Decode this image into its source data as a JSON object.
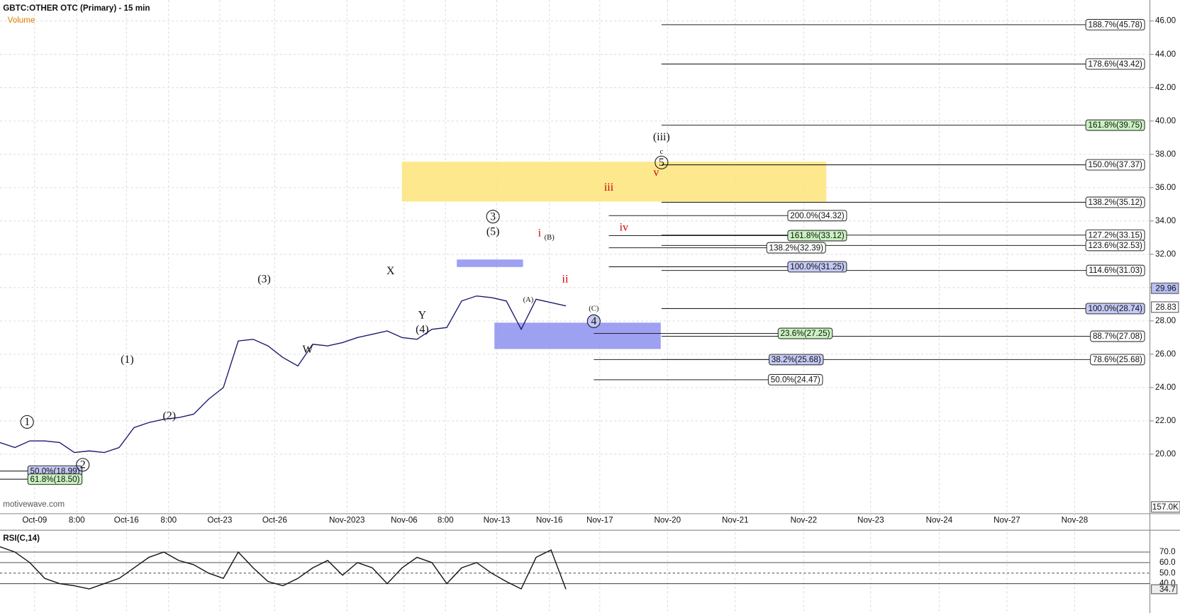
{
  "chart_data": [
    {
      "type": "line",
      "title": "GBTC:OTHER OTC (Primary) - 15 min",
      "indicator": "Volume",
      "watermark": "motivewave.com",
      "color": "#1a1a6e",
      "values": [
        20.7,
        20.4,
        20.8,
        20.8,
        20.7,
        20.1,
        20.2,
        20.1,
        20.4,
        21.6,
        21.9,
        22.1,
        22.2,
        22.4,
        23.3,
        24.0,
        26.8,
        26.9,
        26.5,
        25.8,
        25.3,
        26.6,
        26.5,
        26.7,
        27.0,
        27.2,
        27.4,
        27.0,
        26.9,
        27.5,
        27.6,
        29.2,
        29.5,
        29.4,
        29.2,
        27.5,
        29.3,
        29.1,
        28.9
      ],
      "ylim": [
        16.43,
        47.26
      ],
      "yticks": [
        {
          "value": 20,
          "label": "20.00"
        },
        {
          "value": 22,
          "label": "22.00"
        },
        {
          "value": 24,
          "label": "24.00"
        },
        {
          "value": 26,
          "label": "26.00"
        },
        {
          "value": 28,
          "label": "28.00"
        },
        {
          "value": 30,
          "label": "30.00"
        },
        {
          "value": 32,
          "label": "32.00"
        },
        {
          "value": 34,
          "label": "34.00"
        },
        {
          "value": 36,
          "label": "36.00"
        },
        {
          "value": 38,
          "label": "38.00"
        },
        {
          "value": 40,
          "label": "40.00"
        },
        {
          "value": 42,
          "label": "42.00"
        },
        {
          "value": 44,
          "label": "44.00"
        },
        {
          "value": 46,
          "label": "46.00"
        }
      ],
      "price_labels": [
        29.96,
        28.83
      ],
      "volume_label": "157.0K",
      "time_labels": [
        "Oct-09",
        "8:00",
        "Oct-16",
        "8:00",
        "Oct-23",
        "Oct-26",
        "Nov-2023",
        "Nov-06",
        "8:00",
        "Nov-13",
        "Nov-16",
        "Nov-17",
        "Nov-20",
        "Nov-21",
        "Nov-22",
        "Nov-23",
        "Nov-24",
        "Nov-27",
        "Nov-28"
      ],
      "fib_levels": [
        {
          "label": "188.7%(45.78)",
          "value": 45.78,
          "style": "plain"
        },
        {
          "label": "178.6%(43.42)",
          "value": 43.42,
          "style": "plain"
        },
        {
          "label": "161.8%(39.75)",
          "value": 39.75,
          "style": "green"
        },
        {
          "label": "150.0%(37.37)",
          "value": 37.37,
          "style": "plain"
        },
        {
          "label": "138.2%(35.12)",
          "value": 35.12,
          "style": "plain"
        },
        {
          "label": "127.2%(33.15)",
          "value": 33.15,
          "style": "plain"
        },
        {
          "label": "123.6%(32.53)",
          "value": 32.53,
          "style": "plain"
        },
        {
          "label": "114.6%(31.03)",
          "value": 31.03,
          "style": "plain"
        },
        {
          "label": "100.0%(28.74)",
          "value": 28.74,
          "style": "blue"
        },
        {
          "label": "88.7%(27.08)",
          "value": 27.08,
          "style": "plain"
        },
        {
          "label": "78.6%(25.68)",
          "value": 25.68,
          "style": "plain"
        },
        {
          "label": "200.0%(34.32)",
          "value": 34.32,
          "style": "plain"
        },
        {
          "label": "161.8%(33.12)",
          "value": 33.12,
          "style": "green"
        },
        {
          "label": "138.2%(32.39)",
          "value": 32.39,
          "style": "plain"
        },
        {
          "label": "100.0%(31.25)",
          "value": 31.25,
          "style": "blue"
        },
        {
          "label": "23.6%(27.25)",
          "value": 27.25,
          "style": "green"
        },
        {
          "label": "38.2%(25.68)",
          "value": 25.68,
          "style": "blue"
        },
        {
          "label": "50.0%(24.47)",
          "value": 24.47,
          "style": "plain"
        },
        {
          "label": "50.0%(18.99)",
          "value": 18.99,
          "style": "blue"
        },
        {
          "label": "61.8%(18.50)",
          "value": 18.5,
          "style": "green"
        }
      ],
      "wave_labels": [
        "1",
        "2",
        "(1)",
        "(2)",
        "(3)",
        "W",
        "X",
        "Y",
        "(4)",
        "3",
        "(5)",
        "(A)",
        "i",
        "(B)",
        "ii",
        "(C)",
        "4",
        "(iii)",
        "c",
        "5",
        "v",
        "iii",
        "iv"
      ]
    },
    {
      "type": "line",
      "title": "RSI(C,14)",
      "color": "#111",
      "values": [
        75,
        70,
        60,
        45,
        40,
        38,
        35,
        40,
        45,
        55,
        65,
        70,
        62,
        58,
        50,
        45,
        70,
        55,
        42,
        38,
        45,
        55,
        62,
        48,
        60,
        55,
        40,
        55,
        65,
        60,
        40,
        55,
        60,
        50,
        42,
        35,
        65,
        72,
        34.7
      ],
      "ylim": [
        13.6,
        90.7
      ],
      "yticks": [
        {
          "value": 70,
          "label": "70.0"
        },
        {
          "value": 60,
          "label": "60.0"
        },
        {
          "value": 50,
          "label": "50.0"
        },
        {
          "value": 40,
          "label": "40.0"
        }
      ],
      "current_label": "34.7"
    }
  ]
}
